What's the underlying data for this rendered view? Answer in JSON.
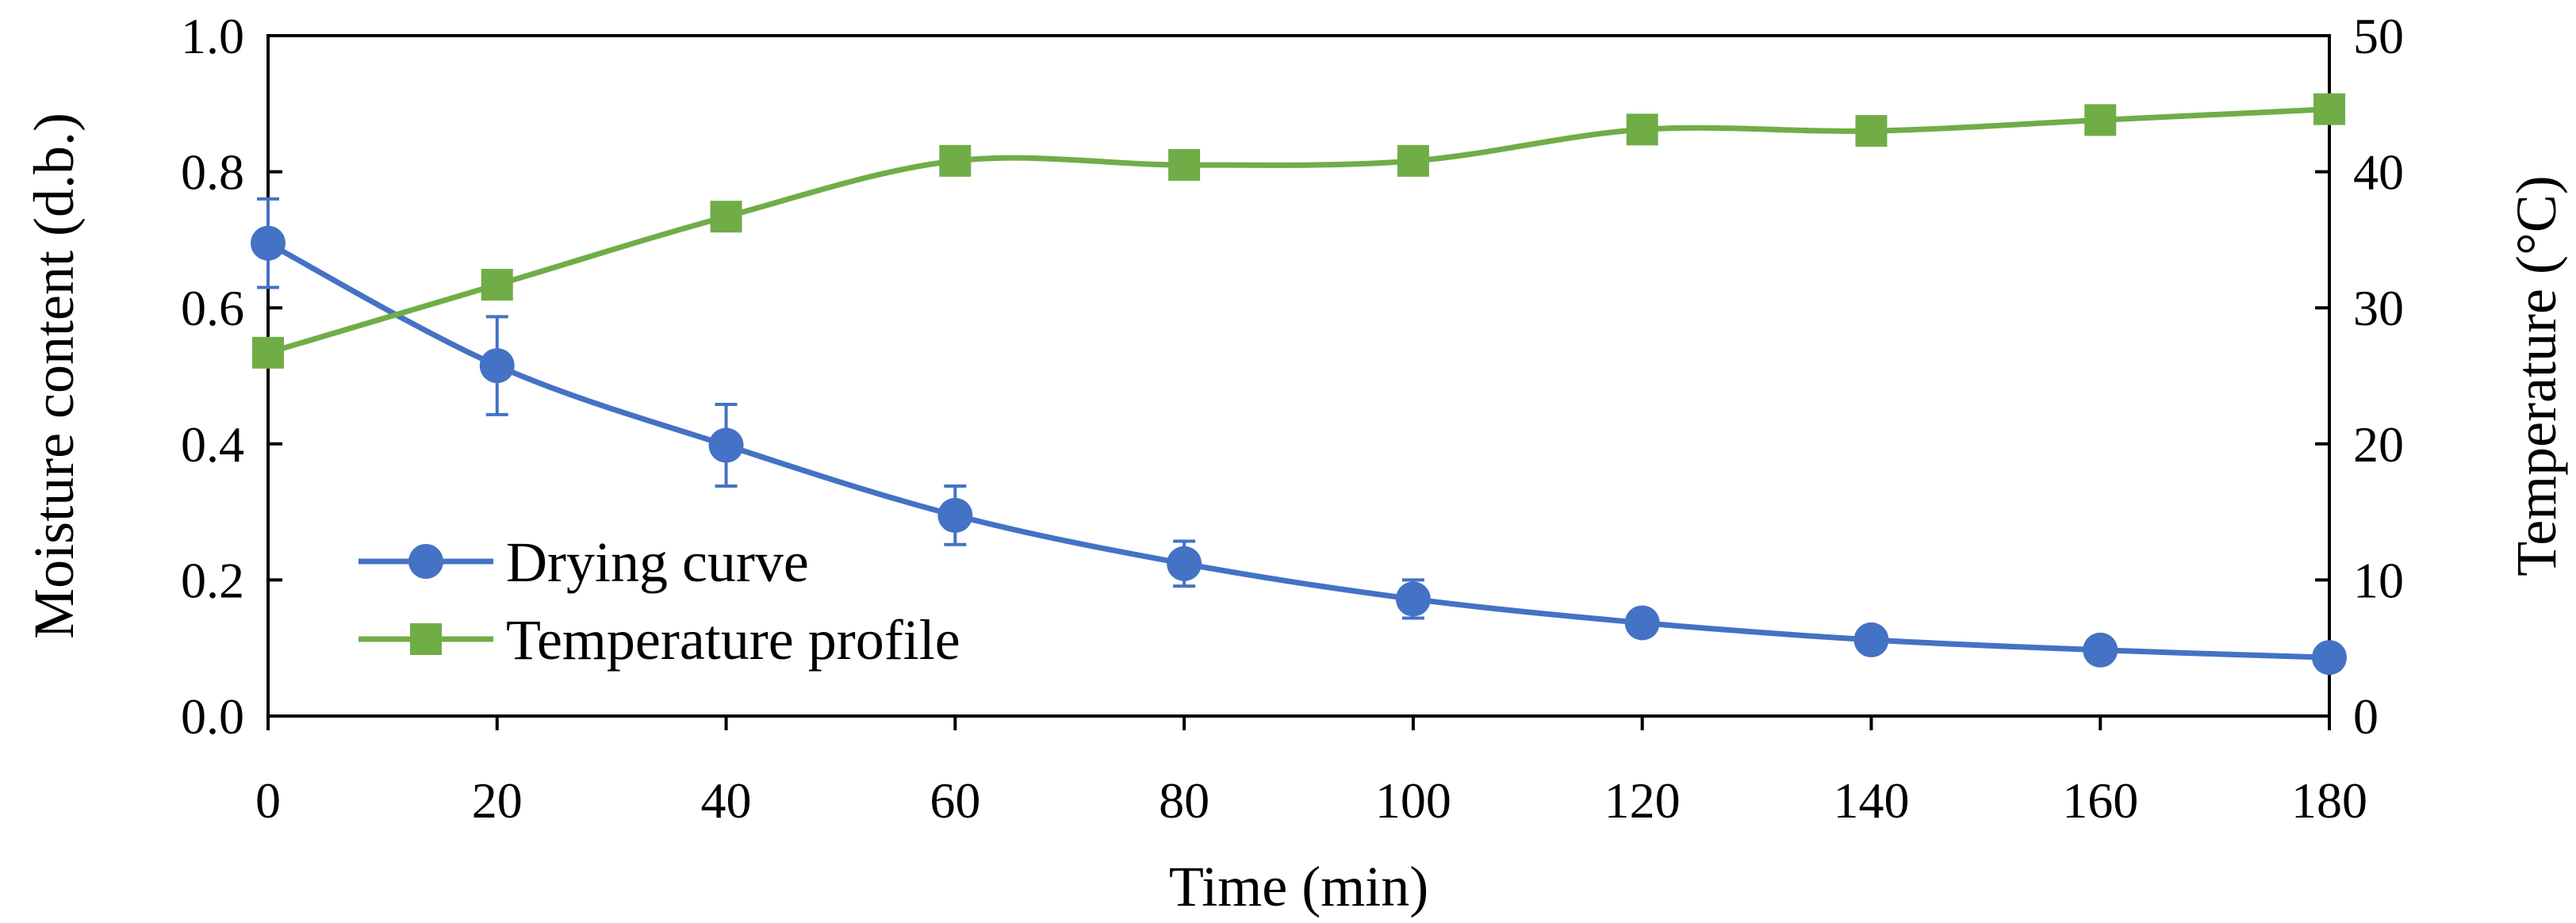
{
  "chart_data": {
    "type": "line",
    "title": "",
    "xlabel": "Time (min)",
    "ylabel": "Moisture content (d.b.)",
    "y2label": "Temperature (°C)",
    "x": [
      0,
      20,
      40,
      60,
      80,
      100,
      120,
      140,
      160,
      180
    ],
    "xlim": [
      0,
      180
    ],
    "ylim": [
      0,
      1.0
    ],
    "y2lim": [
      0,
      50
    ],
    "xticks": [
      "0",
      "20",
      "40",
      "60",
      "80",
      "100",
      "120",
      "140",
      "160",
      "180"
    ],
    "yticks": [
      "0.0",
      "0.2",
      "0.4",
      "0.6",
      "0.8",
      "1.0"
    ],
    "y2ticks": [
      "0",
      "10",
      "20",
      "30",
      "40",
      "50"
    ],
    "grid": false,
    "legend_position": "bottom-left",
    "series": [
      {
        "name": "Drying curve",
        "axis": "left",
        "marker": "circle",
        "color": "#4472C4",
        "values": [
          0.695,
          0.515,
          0.398,
          0.295,
          0.224,
          0.172,
          0.137,
          0.112,
          0.097,
          0.086
        ],
        "error": [
          0.065,
          0.072,
          0.06,
          0.043,
          0.033,
          0.028,
          0.018,
          0.014,
          0.01,
          0.008
        ]
      },
      {
        "name": "Temperature profile",
        "axis": "right",
        "marker": "square",
        "color": "#70AD47",
        "values": [
          26.7,
          31.7,
          36.7,
          40.8,
          40.5,
          40.8,
          43.1,
          43.0,
          43.8,
          44.6
        ],
        "error": []
      }
    ]
  }
}
